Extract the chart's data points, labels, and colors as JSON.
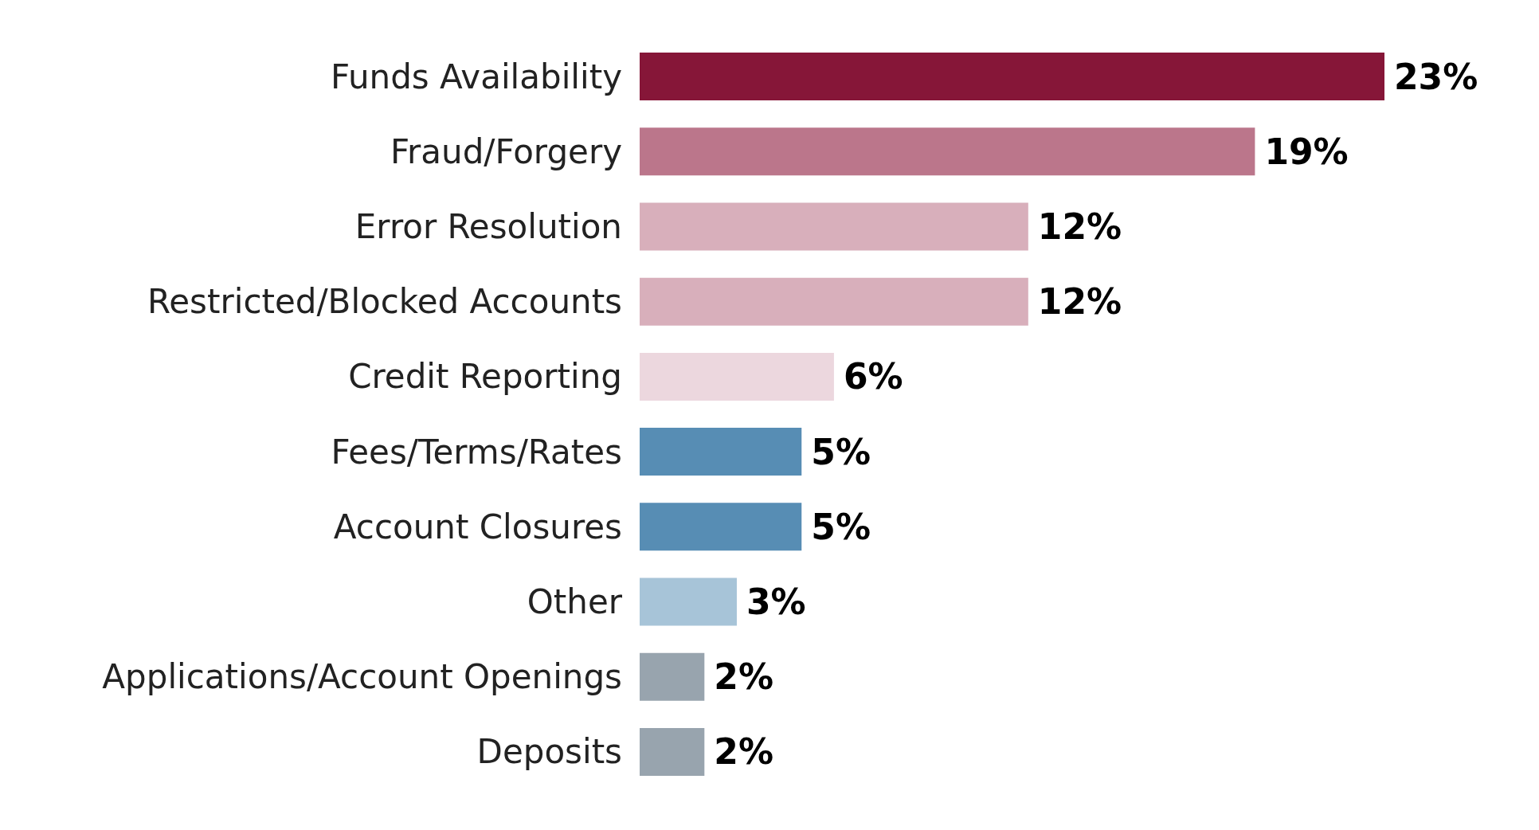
{
  "chart_data": {
    "type": "bar",
    "orientation": "horizontal",
    "categories": [
      "Funds Availability",
      "Fraud/Forgery",
      "Error Resolution",
      "Restricted/Blocked Accounts",
      "Credit Reporting",
      "Fees/Terms/Rates",
      "Account Closures",
      "Other",
      "Applications/Account Openings",
      "Deposits"
    ],
    "values": [
      23,
      19,
      12,
      12,
      6,
      5,
      5,
      3,
      2,
      2
    ],
    "value_labels": [
      "23%",
      "19%",
      "12%",
      "12%",
      "6%",
      "5%",
      "5%",
      "3%",
      "2%",
      "2%"
    ],
    "colors": [
      "#861638",
      "#bb768b",
      "#d8afbb",
      "#d8afbb",
      "#ecd7de",
      "#578db4",
      "#578db4",
      "#a7c4d8",
      "#98a4ae",
      "#98a4ae"
    ]
  }
}
